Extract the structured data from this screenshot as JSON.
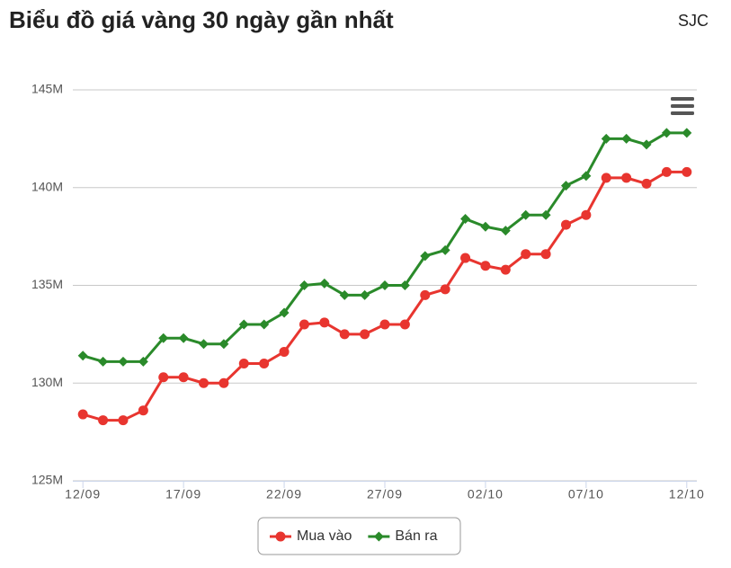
{
  "chart_data": {
    "type": "line",
    "title": "Biểu đồ giá vàng 30 ngày gần nhất",
    "subtitle": "SJC",
    "categories": [
      "12/09",
      null,
      null,
      null,
      null,
      "17/09",
      null,
      null,
      null,
      null,
      "22/09",
      null,
      null,
      null,
      null,
      "27/09",
      null,
      null,
      null,
      null,
      "02/10",
      null,
      null,
      null,
      null,
      "07/10",
      null,
      null,
      null,
      null,
      "12/10"
    ],
    "series": [
      {
        "name": "Mua vào",
        "color": "#e8352f",
        "marker": "circle",
        "values": [
          128.4,
          128.1,
          128.1,
          128.6,
          130.3,
          130.3,
          130.0,
          130.0,
          131.0,
          131.0,
          131.6,
          133.0,
          133.1,
          132.5,
          132.5,
          133.0,
          133.0,
          134.5,
          134.8,
          136.4,
          136.0,
          135.8,
          136.6,
          136.6,
          138.1,
          138.6,
          140.5,
          140.5,
          140.2,
          140.8,
          140.8
        ]
      },
      {
        "name": "Bán ra",
        "color": "#2a8a2a",
        "marker": "diamond",
        "values": [
          131.4,
          131.1,
          131.1,
          131.1,
          132.3,
          132.3,
          132.0,
          132.0,
          133.0,
          133.0,
          133.6,
          135.0,
          135.1,
          134.5,
          134.5,
          135.0,
          135.0,
          136.5,
          136.8,
          138.4,
          138.0,
          137.8,
          138.6,
          138.6,
          140.1,
          140.6,
          142.5,
          142.5,
          142.2,
          142.8,
          142.8
        ]
      }
    ],
    "ylim": [
      125,
      145
    ],
    "yticks": [
      {
        "value": 125,
        "label": "125M"
      },
      {
        "value": 130,
        "label": "130M"
      },
      {
        "value": 135,
        "label": "135M"
      },
      {
        "value": 140,
        "label": "140M"
      },
      {
        "value": 145,
        "label": "145M"
      }
    ],
    "grid": true
  }
}
